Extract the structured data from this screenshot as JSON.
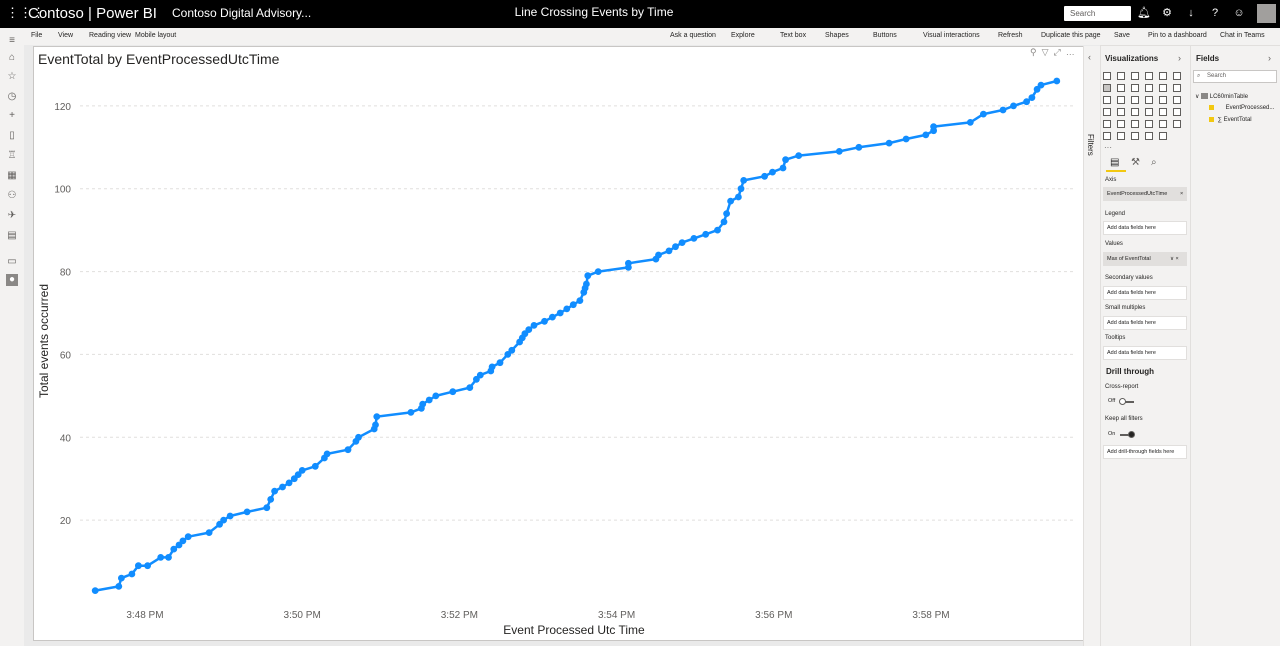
{
  "topbar": {
    "app_name": "Contoso | Power BI",
    "workspace": "Contoso Digital Advisory...",
    "report_title": "Line Crossing Events by Time",
    "search_placeholder": "Search"
  },
  "commandbar": {
    "left": [
      "File",
      "View",
      "Reading view",
      "Mobile layout"
    ],
    "right": [
      "Ask a question",
      "Explore",
      "Text box",
      "Shapes",
      "Buttons",
      "Visual interactions",
      "Refresh",
      "Duplicate this page",
      "Save",
      "Pin to a dashboard",
      "Chat in Teams"
    ]
  },
  "filters_label": "Filters",
  "visualizations": {
    "title": "Visualizations",
    "axis_label": "Axis",
    "axis_field": "EventProcessedUtcTime",
    "legend_label": "Legend",
    "legend_placeholder": "Add data fields here",
    "values_label": "Values",
    "values_field": "Max of EventTotal",
    "secondary_label": "Secondary values",
    "secondary_placeholder": "Add data fields here",
    "small_multiples_label": "Small multiples",
    "small_multiples_placeholder": "Add data fields here",
    "tooltips_label": "Tooltips",
    "tooltips_placeholder": "Add data fields here",
    "drill_through_label": "Drill through",
    "cross_report_label": "Cross-report",
    "cross_report_state": "Off",
    "keep_filters_label": "Keep all filters",
    "keep_filters_state": "On",
    "drill_placeholder": "Add drill-through fields here"
  },
  "fields": {
    "title": "Fields",
    "search_placeholder": "Search",
    "table_name": "LC60minTable",
    "items": [
      "EventProcessed...",
      "EventTotal"
    ]
  },
  "chart_data": {
    "type": "line",
    "title": "EventTotal by EventProcessedUtcTime",
    "xlabel": "Event Processed Utc Time",
    "ylabel": "Total events occurred",
    "x_ticks": [
      "3:48 PM",
      "3:50 PM",
      "3:52 PM",
      "3:54 PM",
      "3:56 PM",
      "3:58 PM"
    ],
    "y_ticks": [
      20,
      40,
      60,
      80,
      100,
      120
    ],
    "ylim": [
      0,
      126
    ],
    "xlim_minutes": [
      "3:47:15 PM",
      "3:59:40 PM"
    ],
    "grid": "horizontal dashed",
    "line_color": "#118dff",
    "points": [
      {
        "x": "3:47:22 PM",
        "y": 3
      },
      {
        "x": "3:47:40 PM",
        "y": 4
      },
      {
        "x": "3:47:42 PM",
        "y": 6
      },
      {
        "x": "3:47:50 PM",
        "y": 7
      },
      {
        "x": "3:47:55 PM",
        "y": 9
      },
      {
        "x": "3:48:02 PM",
        "y": 9
      },
      {
        "x": "3:48:12 PM",
        "y": 11
      },
      {
        "x": "3:48:18 PM",
        "y": 11
      },
      {
        "x": "3:48:22 PM",
        "y": 13
      },
      {
        "x": "3:48:26 PM",
        "y": 14
      },
      {
        "x": "3:48:29 PM",
        "y": 15
      },
      {
        "x": "3:48:33 PM",
        "y": 16
      },
      {
        "x": "3:48:49 PM",
        "y": 17
      },
      {
        "x": "3:48:57 PM",
        "y": 19
      },
      {
        "x": "3:49:00 PM",
        "y": 20
      },
      {
        "x": "3:49:05 PM",
        "y": 21
      },
      {
        "x": "3:49:18 PM",
        "y": 22
      },
      {
        "x": "3:49:33 PM",
        "y": 23
      },
      {
        "x": "3:49:36 PM",
        "y": 25
      },
      {
        "x": "3:49:39 PM",
        "y": 27
      },
      {
        "x": "3:49:45 PM",
        "y": 28
      },
      {
        "x": "3:49:50 PM",
        "y": 29
      },
      {
        "x": "3:49:54 PM",
        "y": 30
      },
      {
        "x": "3:49:57 PM",
        "y": 31
      },
      {
        "x": "3:50:00 PM",
        "y": 32
      },
      {
        "x": "3:50:10 PM",
        "y": 33
      },
      {
        "x": "3:50:17 PM",
        "y": 35
      },
      {
        "x": "3:50:19 PM",
        "y": 36
      },
      {
        "x": "3:50:35 PM",
        "y": 37
      },
      {
        "x": "3:50:41 PM",
        "y": 39
      },
      {
        "x": "3:50:43 PM",
        "y": 40
      },
      {
        "x": "3:50:55 PM",
        "y": 42
      },
      {
        "x": "3:50:56 PM",
        "y": 43
      },
      {
        "x": "3:50:57 PM",
        "y": 45
      },
      {
        "x": "3:51:23 PM",
        "y": 46
      },
      {
        "x": "3:51:31 PM",
        "y": 47
      },
      {
        "x": "3:51:32 PM",
        "y": 48
      },
      {
        "x": "3:51:37 PM",
        "y": 49
      },
      {
        "x": "3:51:42 PM",
        "y": 50
      },
      {
        "x": "3:51:55 PM",
        "y": 51
      },
      {
        "x": "3:52:08 PM",
        "y": 52
      },
      {
        "x": "3:52:13 PM",
        "y": 54
      },
      {
        "x": "3:52:16 PM",
        "y": 55
      },
      {
        "x": "3:52:24 PM",
        "y": 56
      },
      {
        "x": "3:52:25 PM",
        "y": 57
      },
      {
        "x": "3:52:31 PM",
        "y": 58
      },
      {
        "x": "3:52:37 PM",
        "y": 60
      },
      {
        "x": "3:52:40 PM",
        "y": 61
      },
      {
        "x": "3:52:46 PM",
        "y": 63
      },
      {
        "x": "3:52:48 PM",
        "y": 64
      },
      {
        "x": "3:52:50 PM",
        "y": 65
      },
      {
        "x": "3:52:53 PM",
        "y": 66
      },
      {
        "x": "3:52:57 PM",
        "y": 67
      },
      {
        "x": "3:53:05 PM",
        "y": 68
      },
      {
        "x": "3:53:11 PM",
        "y": 69
      },
      {
        "x": "3:53:17 PM",
        "y": 70
      },
      {
        "x": "3:53:22 PM",
        "y": 71
      },
      {
        "x": "3:53:27 PM",
        "y": 72
      },
      {
        "x": "3:53:32 PM",
        "y": 73
      },
      {
        "x": "3:53:35 PM",
        "y": 75
      },
      {
        "x": "3:53:36 PM",
        "y": 76
      },
      {
        "x": "3:53:37 PM",
        "y": 77
      },
      {
        "x": "3:53:38 PM",
        "y": 79
      },
      {
        "x": "3:53:46 PM",
        "y": 80
      },
      {
        "x": "3:54:09 PM",
        "y": 81
      },
      {
        "x": "3:54:09 PM",
        "y": 82
      },
      {
        "x": "3:54:30 PM",
        "y": 83
      },
      {
        "x": "3:54:32 PM",
        "y": 84
      },
      {
        "x": "3:54:40 PM",
        "y": 85
      },
      {
        "x": "3:54:45 PM",
        "y": 86
      },
      {
        "x": "3:54:50 PM",
        "y": 87
      },
      {
        "x": "3:54:59 PM",
        "y": 88
      },
      {
        "x": "3:55:08 PM",
        "y": 89
      },
      {
        "x": "3:55:17 PM",
        "y": 90
      },
      {
        "x": "3:55:22 PM",
        "y": 92
      },
      {
        "x": "3:55:24 PM",
        "y": 94
      },
      {
        "x": "3:55:27 PM",
        "y": 97
      },
      {
        "x": "3:55:33 PM",
        "y": 98
      },
      {
        "x": "3:55:35 PM",
        "y": 100
      },
      {
        "x": "3:55:37 PM",
        "y": 102
      },
      {
        "x": "3:55:53 PM",
        "y": 103
      },
      {
        "x": "3:55:59 PM",
        "y": 104
      },
      {
        "x": "3:56:07 PM",
        "y": 105
      },
      {
        "x": "3:56:09 PM",
        "y": 107
      },
      {
        "x": "3:56:19 PM",
        "y": 108
      },
      {
        "x": "3:56:50 PM",
        "y": 109
      },
      {
        "x": "3:57:05 PM",
        "y": 110
      },
      {
        "x": "3:57:28 PM",
        "y": 111
      },
      {
        "x": "3:57:41 PM",
        "y": 112
      },
      {
        "x": "3:57:56 PM",
        "y": 113
      },
      {
        "x": "3:58:02 PM",
        "y": 114
      },
      {
        "x": "3:58:02 PM",
        "y": 115
      },
      {
        "x": "3:58:30 PM",
        "y": 116
      },
      {
        "x": "3:58:40 PM",
        "y": 118
      },
      {
        "x": "3:58:55 PM",
        "y": 119
      },
      {
        "x": "3:59:03 PM",
        "y": 120
      },
      {
        "x": "3:59:13 PM",
        "y": 121
      },
      {
        "x": "3:59:17 PM",
        "y": 122
      },
      {
        "x": "3:59:21 PM",
        "y": 124
      },
      {
        "x": "3:59:24 PM",
        "y": 125
      },
      {
        "x": "3:59:36 PM",
        "y": 126
      }
    ]
  }
}
